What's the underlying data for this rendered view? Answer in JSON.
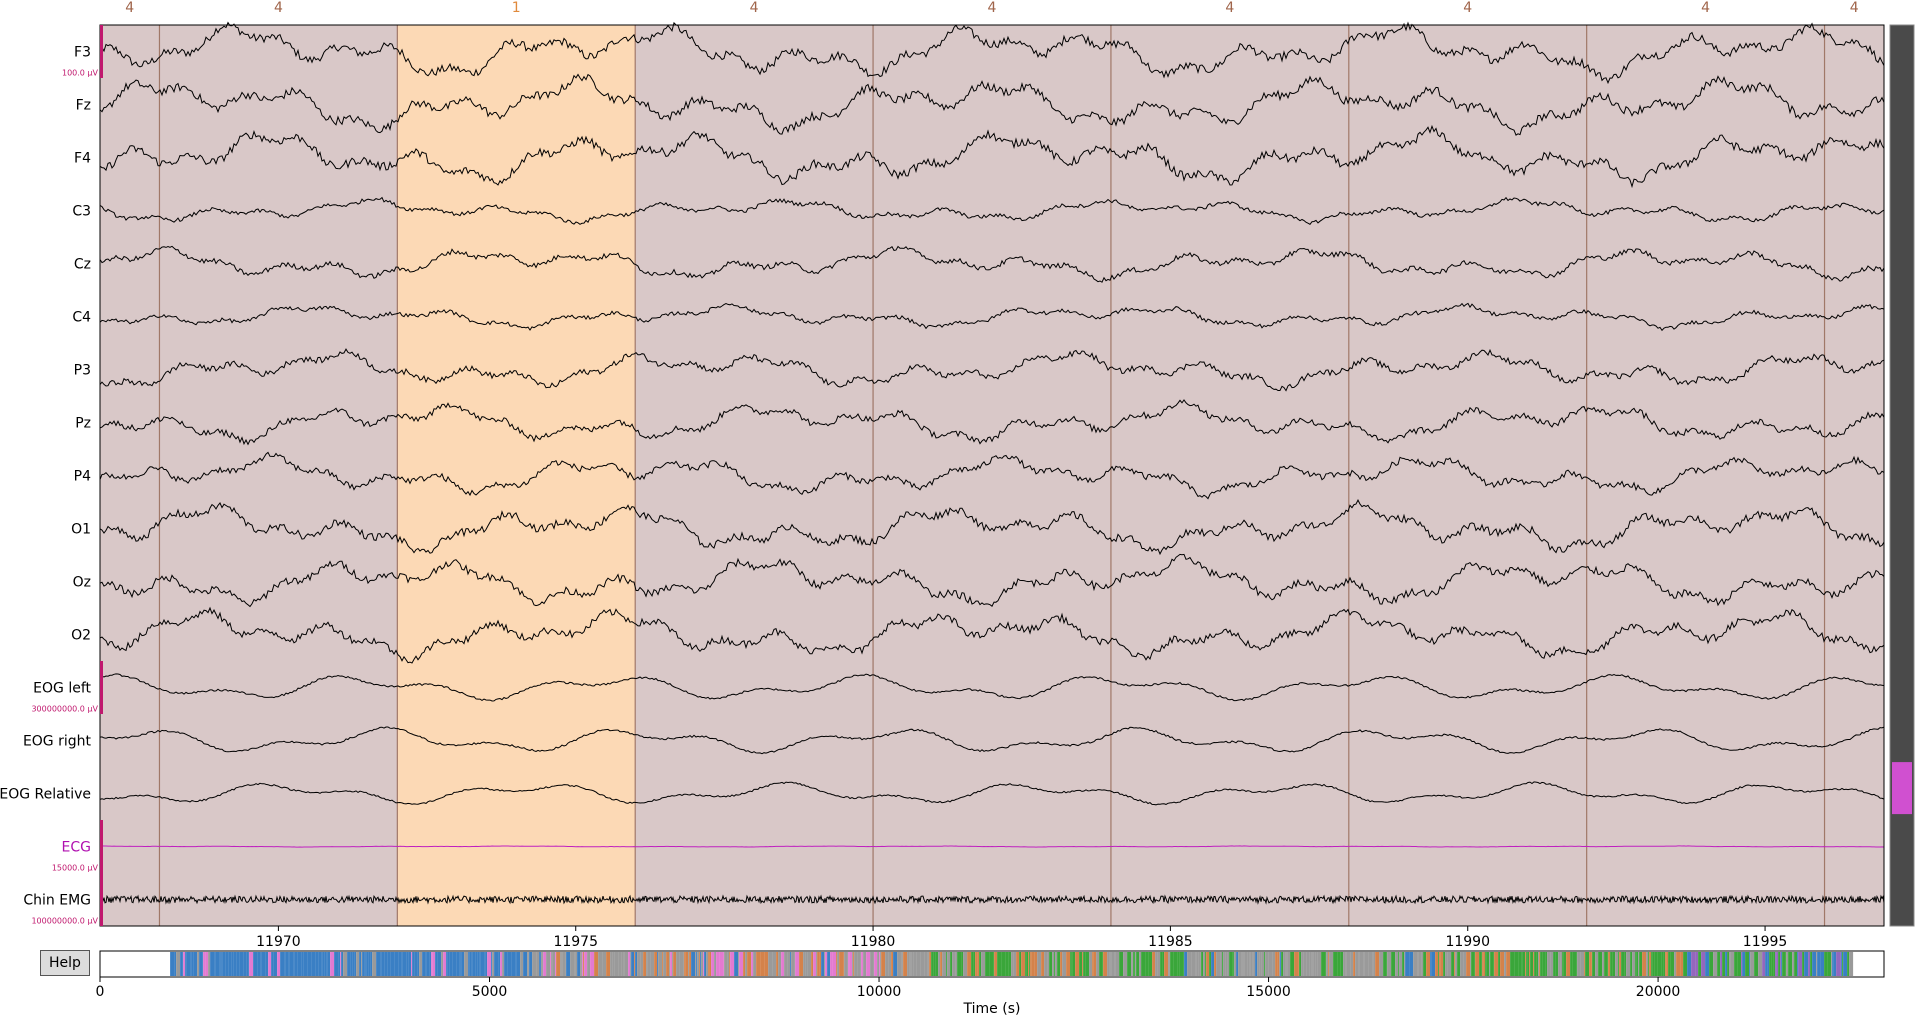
{
  "window": {
    "help_label": "Help"
  },
  "epochs": {
    "labels": [
      "4",
      "4",
      "1",
      "4",
      "4",
      "4",
      "4",
      "4",
      "4"
    ],
    "shading": [
      "#d9c8c8",
      "#d9c8c8",
      "#fcd9b5",
      "#d9c8c8",
      "#d9c8c8",
      "#d9c8c8",
      "#d9c8c8",
      "#d9c8c8",
      "#d9c8c8"
    ],
    "label_colors": [
      "#a0654b",
      "#a0654b",
      "#e08a3c",
      "#a0654b",
      "#a0654b",
      "#a0654b",
      "#a0654b",
      "#a0654b",
      "#a0654b"
    ],
    "boundaries_s": [
      11968,
      11972,
      11976,
      11980,
      11984,
      11988,
      11992,
      11996
    ]
  },
  "channels": [
    {
      "name": "F3",
      "color": "#000000",
      "amp": 1.0,
      "scale": "100.0 µV"
    },
    {
      "name": "Fz",
      "color": "#000000",
      "amp": 1.0
    },
    {
      "name": "F4",
      "color": "#000000",
      "amp": 1.0
    },
    {
      "name": "C3",
      "color": "#000000",
      "amp": 0.45
    },
    {
      "name": "Cz",
      "color": "#000000",
      "amp": 0.6
    },
    {
      "name": "C4",
      "color": "#000000",
      "amp": 0.45
    },
    {
      "name": "P3",
      "color": "#000000",
      "amp": 0.7
    },
    {
      "name": "Pz",
      "color": "#000000",
      "amp": 0.75
    },
    {
      "name": "P4",
      "color": "#000000",
      "amp": 0.75
    },
    {
      "name": "O1",
      "color": "#000000",
      "amp": 0.9
    },
    {
      "name": "Oz",
      "color": "#000000",
      "amp": 0.9
    },
    {
      "name": "O2",
      "color": "#000000",
      "amp": 0.9
    },
    {
      "name": "EOG left",
      "color": "#000000",
      "amp": 0.7,
      "scale": "300000000.0 µV"
    },
    {
      "name": "EOG right",
      "color": "#000000",
      "amp": 0.7
    },
    {
      "name": "EOG Relative",
      "color": "#000000",
      "amp": 0.6
    },
    {
      "name": "ECG",
      "color": "#c020c0",
      "amp": 0.02,
      "scale": "15000.0 µV"
    },
    {
      "name": "Chin EMG",
      "color": "#000000",
      "amp": 0.35,
      "scale": "100000000.0 µV"
    }
  ],
  "time_axis": {
    "ticks": [
      "11970",
      "11975",
      "11980",
      "11985",
      "11990",
      "11995"
    ],
    "tick_values": [
      11970,
      11975,
      11980,
      11985,
      11990,
      11995
    ],
    "range": [
      11967,
      11997
    ]
  },
  "overview": {
    "ticks": [
      "0",
      "5000",
      "10000",
      "15000",
      "20000"
    ],
    "tick_values": [
      0,
      5000,
      10000,
      15000,
      20000
    ],
    "range": [
      0,
      22900
    ],
    "xlabel": "Time (s)",
    "stage_colors": [
      "#3a7fc4",
      "#9a9a9a",
      "#d4824a",
      "#3aa63a",
      "#e37ad1",
      "#9467bd"
    ]
  },
  "scrollbar": {
    "position_fraction": 0.87,
    "thumb_color": "#d050d0"
  },
  "colors": {
    "plot_border": "#000000",
    "scale_bar": "#c0186e"
  }
}
